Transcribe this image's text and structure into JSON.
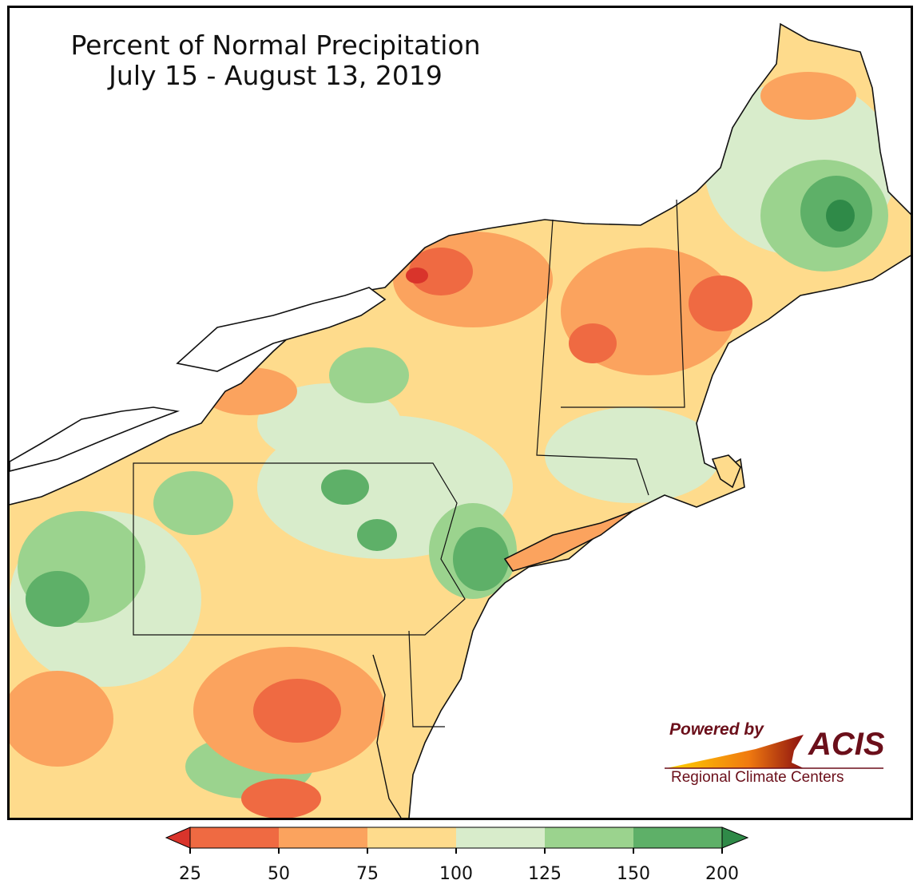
{
  "title": {
    "line1": "Percent of Normal Precipitation",
    "line2": "July 15 - August 13, 2019"
  },
  "logo": {
    "powered": "Powered by",
    "name": "ACIS",
    "subtitle": "Regional Climate Centers"
  },
  "legend": {
    "ticks": [
      "25",
      "50",
      "75",
      "100",
      "125",
      "150",
      "200"
    ],
    "colors": [
      "#d9342b",
      "#ef6a42",
      "#fba35e",
      "#fedb8c",
      "#d8eccb",
      "#9bd38e",
      "#5eb068",
      "#2f8a48"
    ],
    "extend": "both"
  }
}
